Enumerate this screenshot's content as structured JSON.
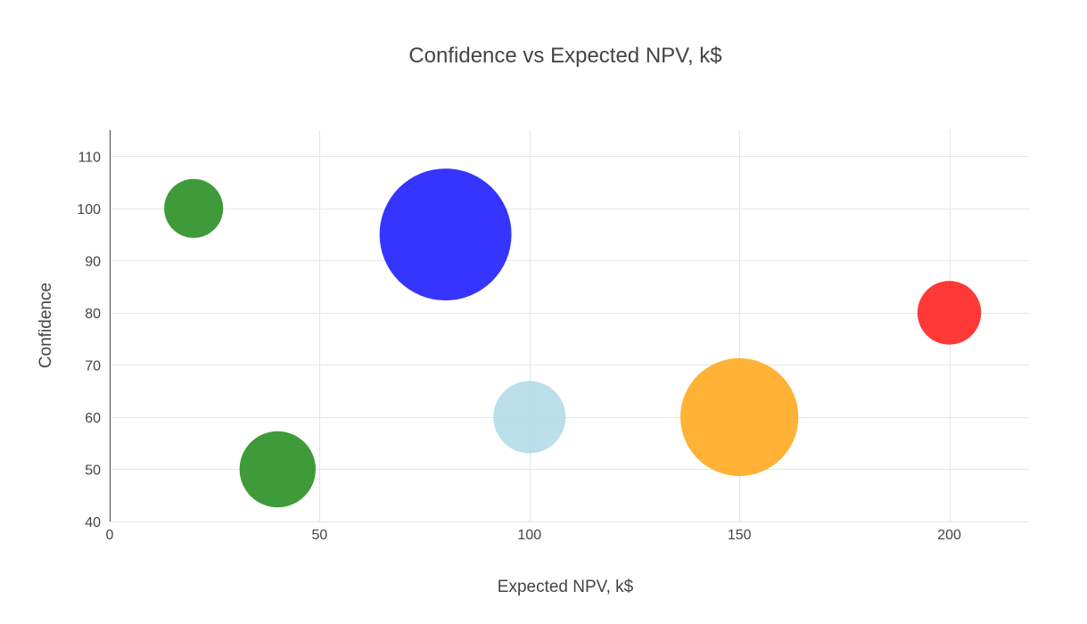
{
  "chart_data": {
    "type": "scatter",
    "subtype": "bubble",
    "title": "Confidence vs Expected NPV, k$",
    "xlabel": "Expected NPV, k$",
    "ylabel": "Confidence",
    "xlim": [
      0,
      219
    ],
    "ylim": [
      40,
      115
    ],
    "xticks": [
      0,
      50,
      100,
      150,
      200
    ],
    "yticks": [
      40,
      50,
      60,
      70,
      80,
      90,
      100,
      110
    ],
    "grid": true,
    "legend": "none",
    "points": [
      {
        "x": 20,
        "y": 100,
        "size": 6,
        "color": "#2a8f23"
      },
      {
        "x": 80,
        "y": 95,
        "size": 30,
        "color": "#1f1fff"
      },
      {
        "x": 200,
        "y": 80,
        "size": 7,
        "color": "#ff2222"
      },
      {
        "x": 100,
        "y": 60,
        "size": 9,
        "color": "#b3dae8"
      },
      {
        "x": 150,
        "y": 60,
        "size": 24,
        "color": "#ffaa1f"
      },
      {
        "x": 40,
        "y": 50,
        "size": 10,
        "color": "#2a8f23"
      }
    ]
  }
}
